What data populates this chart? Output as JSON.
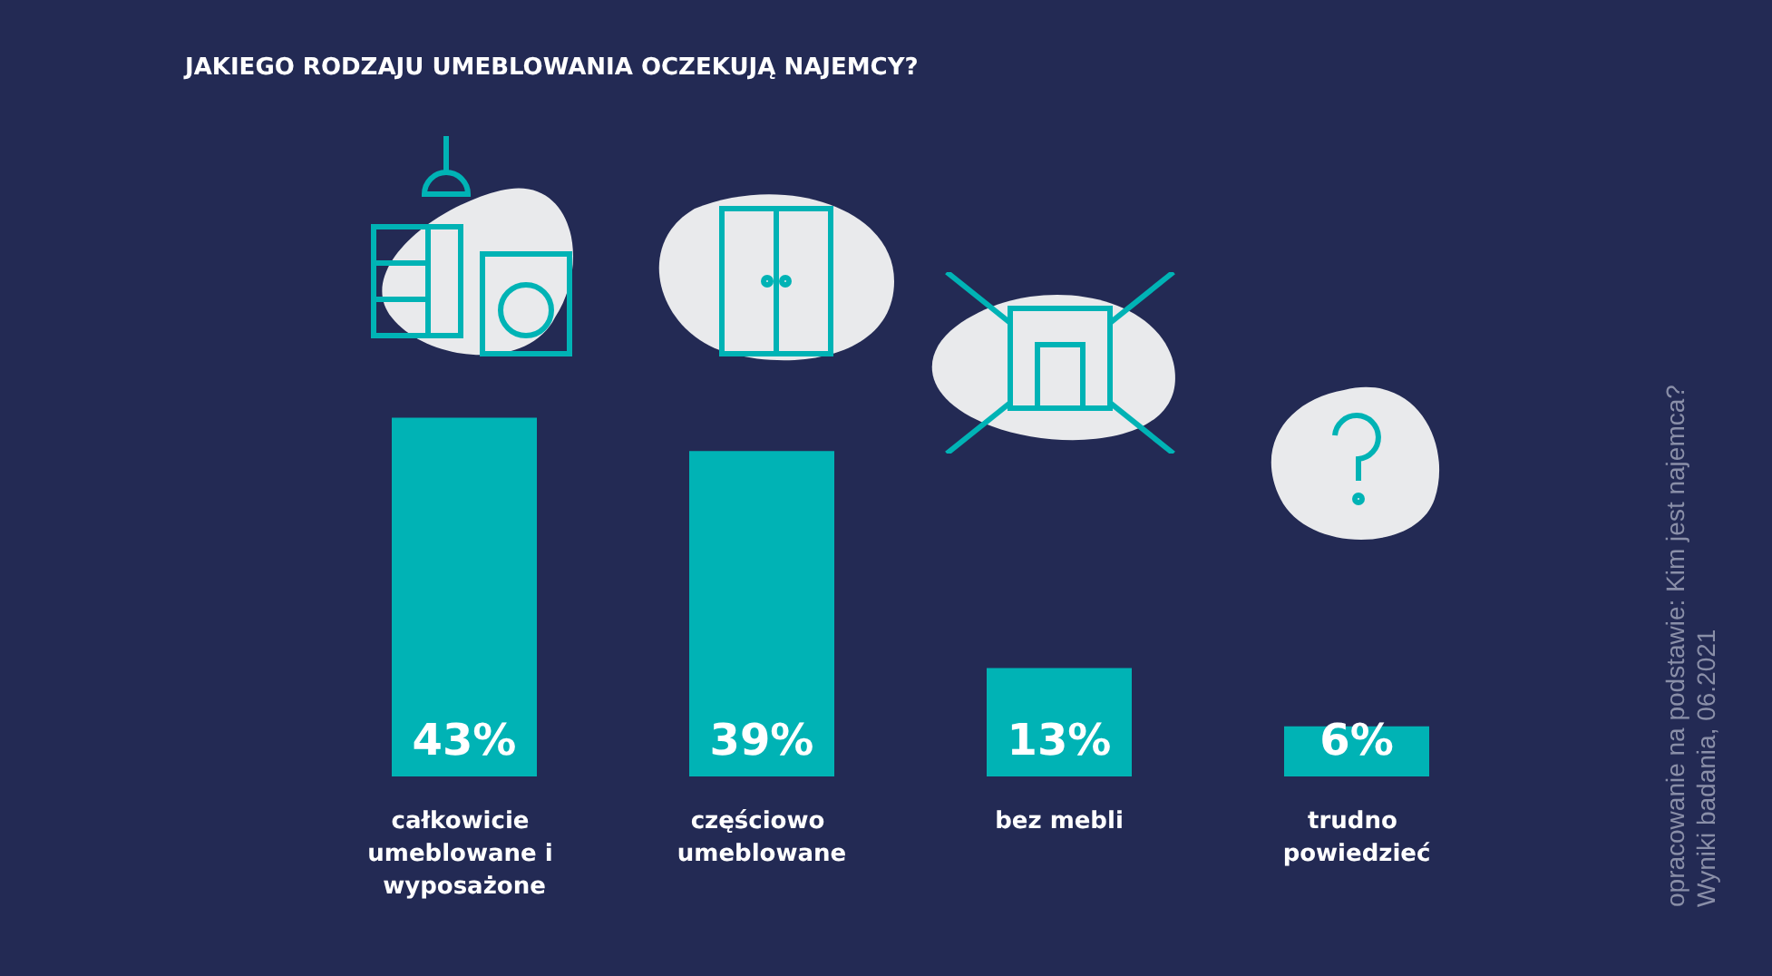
{
  "chart_data": {
    "type": "bar",
    "title": "JAKIEGO RODZAJU UMEBLOWANIA OCZEKUJĄ NAJEMCY?",
    "categories": [
      "całkowicie umeblowane i wyposażone",
      "częściowo umeblowane",
      "bez mebli",
      "trudno powiedzieć"
    ],
    "values": [
      43,
      39,
      13,
      6
    ],
    "color": "#00b3b5",
    "data_labels": true,
    "value_labels": [
      "43%",
      "39%",
      "13%",
      "6%"
    ],
    "annotations": [
      "opracowanie na podstawie: Kim jest najemca? Wyniki badania, 06.2021"
    ]
  }
}
